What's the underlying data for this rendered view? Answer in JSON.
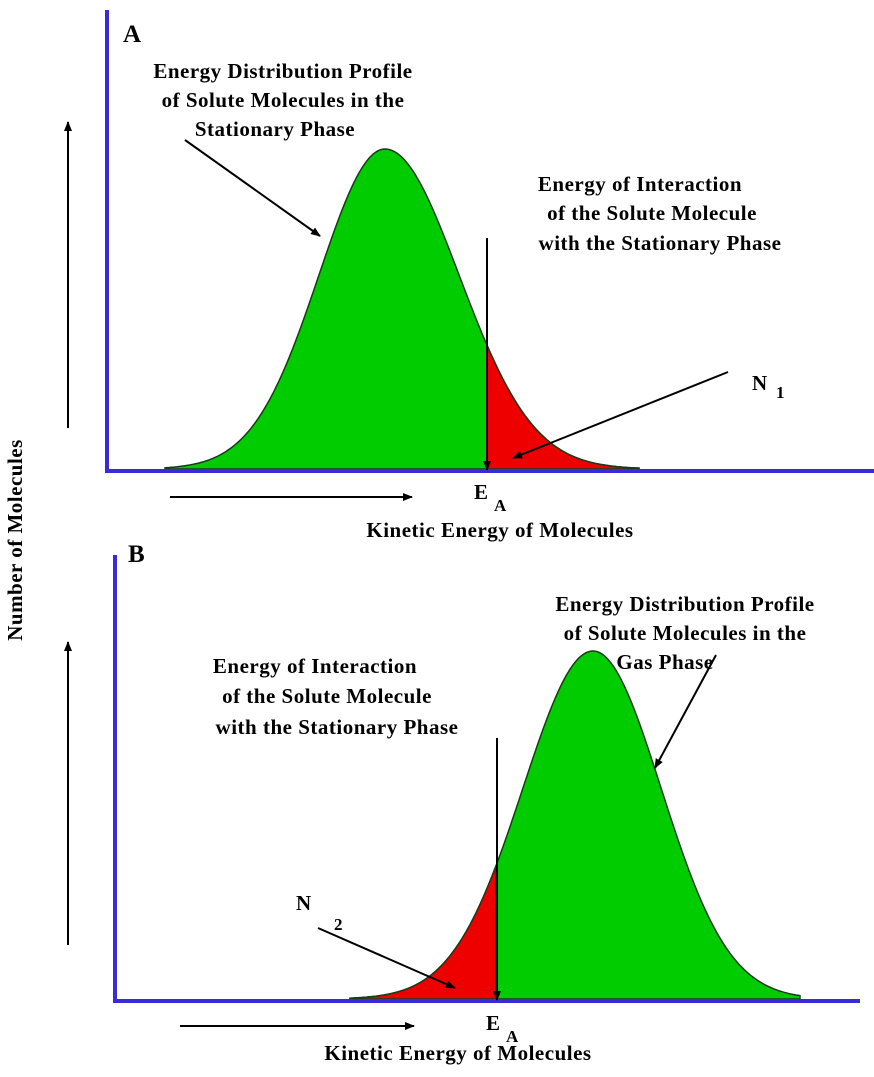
{
  "y_axis_label": "Number of Molecules",
  "panels": [
    {
      "label": "A",
      "profile_label": [
        "Energy Distribution Profile",
        "of Solute Molecules in the",
        "Stationary Phase"
      ],
      "interaction_label": [
        "Energy of Interaction",
        "of the Solute Molecule",
        "with the Stationary Phase"
      ],
      "fraction_label": {
        "text": "N",
        "subscript": "1"
      },
      "threshold_label": {
        "text": "E",
        "subscript": "A"
      },
      "x_axis_label": "Kinetic Energy of Molecules"
    },
    {
      "label": "B",
      "profile_label": [
        "Energy Distribution Profile",
        "of Solute Molecules in the",
        "Gas Phase"
      ],
      "interaction_label": [
        "Energy of Interaction",
        "of the Solute Molecule",
        "with the Stationary Phase"
      ],
      "fraction_label": {
        "text": "N",
        "subscript": "2"
      },
      "threshold_label": {
        "text": "E",
        "subscript": "A"
      },
      "x_axis_label": "Kinetic Energy of Molecules"
    }
  ]
}
